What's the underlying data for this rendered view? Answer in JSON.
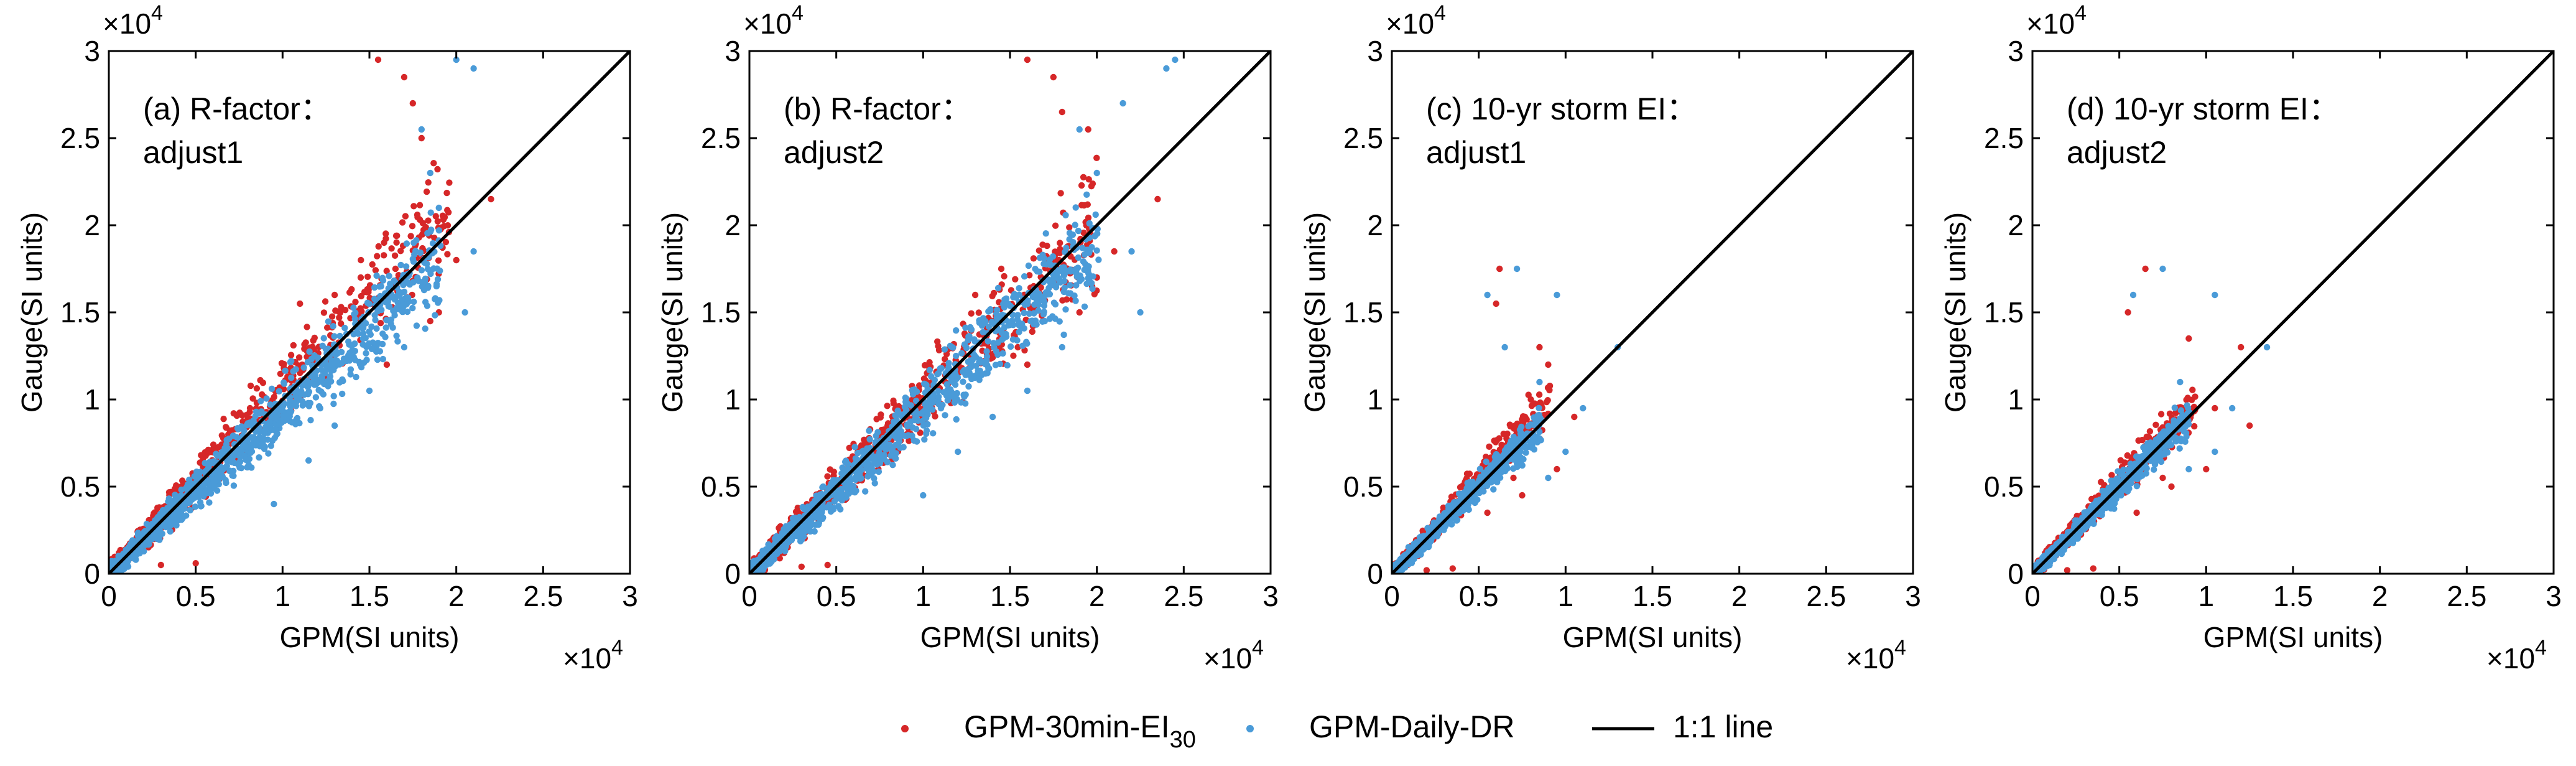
{
  "figure": {
    "legend": {
      "placement": "bottom-center",
      "items": [
        {
          "label_main": "GPM-30min-EI",
          "label_sub": "30",
          "marker": "dot",
          "color": "#d62728"
        },
        {
          "label_main": "GPM-Daily-DR",
          "label_sub": "",
          "marker": "dot",
          "color": "#4a9bd8"
        },
        {
          "label_main": "1:1 line",
          "label_sub": "",
          "marker": "line",
          "color": "#000000"
        }
      ]
    },
    "colors": {
      "series_a": "#d62728",
      "series_b": "#4a9bd8",
      "line": "#000000"
    }
  },
  "chart_data": [
    {
      "type": "scatter",
      "panel": "a",
      "title_line1": "(a) R-factor：",
      "title_line2": "adjust1",
      "xlabel": "GPM(SI units)",
      "ylabel": "Gauge(SI units)",
      "xlim": [
        0,
        3
      ],
      "ylim": [
        0,
        3
      ],
      "ticks": [
        0,
        0.5,
        1,
        1.5,
        2,
        2.5,
        3
      ],
      "tick_labels": [
        "0",
        "0.5",
        "1",
        "1.5",
        "2",
        "2.5",
        "3"
      ],
      "y_multiplier_base": "×10",
      "y_multiplier_exp": "4",
      "x_multiplier_base": "×10",
      "x_multiplier_exp": "4",
      "ref_line": [
        [
          0,
          0
        ],
        [
          3,
          3
        ]
      ],
      "series": [
        {
          "name": "GPM-30min-EI30",
          "color": "#d62728",
          "cluster": {
            "n": 650,
            "xmax": 1.95,
            "spread": 0.16,
            "bias": 1.05,
            "seed": 11
          },
          "outliers": [
            [
              1.55,
              2.95
            ],
            [
              1.7,
              2.85
            ],
            [
              1.8,
              2.5
            ],
            [
              1.75,
              2.7
            ],
            [
              2.2,
              2.15
            ],
            [
              1.9,
              1.5
            ],
            [
              1.6,
              1.2
            ],
            [
              2.0,
              1.8
            ],
            [
              1.45,
              1.7
            ],
            [
              1.3,
              1.6
            ],
            [
              1.1,
              1.55
            ],
            [
              0.5,
              0.06
            ],
            [
              0.3,
              0.05
            ],
            [
              1.85,
              1.45
            ],
            [
              1.65,
              1.75
            ]
          ]
        },
        {
          "name": "GPM-Daily-DR",
          "color": "#4a9bd8",
          "cluster": {
            "n": 1100,
            "xmax": 1.9,
            "spread": 0.14,
            "bias": 0.95,
            "seed": 23
          },
          "outliers": [
            [
              2.0,
              2.95
            ],
            [
              2.1,
              2.9
            ],
            [
              1.8,
              2.55
            ],
            [
              1.85,
              2.3
            ],
            [
              1.9,
              2.1
            ],
            [
              2.1,
              1.85
            ],
            [
              2.05,
              1.5
            ],
            [
              1.7,
              1.3
            ],
            [
              1.5,
              1.05
            ],
            [
              1.3,
              0.85
            ],
            [
              1.15,
              0.65
            ],
            [
              0.95,
              0.4
            ]
          ]
        }
      ]
    },
    {
      "type": "scatter",
      "panel": "b",
      "title_line1": "(b) R-factor：",
      "title_line2": "adjust2",
      "xlabel": "GPM(SI units)",
      "ylabel": "Gauge(SI units)",
      "xlim": [
        0,
        3
      ],
      "ylim": [
        0,
        3
      ],
      "ticks": [
        0,
        0.5,
        1,
        1.5,
        2,
        2.5,
        3
      ],
      "tick_labels": [
        "0",
        "0.5",
        "1",
        "1.5",
        "2",
        "2.5",
        "3"
      ],
      "y_multiplier_base": "×10",
      "y_multiplier_exp": "4",
      "x_multiplier_base": "×10",
      "x_multiplier_exp": "4",
      "ref_line": [
        [
          0,
          0
        ],
        [
          3,
          3
        ]
      ],
      "series": [
        {
          "name": "GPM-30min-EI30",
          "color": "#d62728",
          "cluster": {
            "n": 650,
            "xmax": 2.0,
            "spread": 0.16,
            "bias": 1.0,
            "seed": 31
          },
          "outliers": [
            [
              1.6,
              2.95
            ],
            [
              1.75,
              2.85
            ],
            [
              1.95,
              2.55
            ],
            [
              1.8,
              2.65
            ],
            [
              2.35,
              2.15
            ],
            [
              2.1,
              1.85
            ],
            [
              1.9,
              1.5
            ],
            [
              1.6,
              1.2
            ],
            [
              1.45,
              1.75
            ],
            [
              1.3,
              1.6
            ],
            [
              0.45,
              0.05
            ],
            [
              0.3,
              0.04
            ],
            [
              2.0,
              1.7
            ]
          ]
        },
        {
          "name": "GPM-Daily-DR",
          "color": "#4a9bd8",
          "cluster": {
            "n": 1100,
            "xmax": 2.0,
            "spread": 0.14,
            "bias": 0.95,
            "seed": 43
          },
          "outliers": [
            [
              2.45,
              2.95
            ],
            [
              2.4,
              2.9
            ],
            [
              2.15,
              2.7
            ],
            [
              1.9,
              2.55
            ],
            [
              2.0,
              2.3
            ],
            [
              2.2,
              1.85
            ],
            [
              2.25,
              1.5
            ],
            [
              1.8,
              1.3
            ],
            [
              1.6,
              1.05
            ],
            [
              1.4,
              0.9
            ],
            [
              1.2,
              0.7
            ],
            [
              1.0,
              0.45
            ]
          ]
        }
      ]
    },
    {
      "type": "scatter",
      "panel": "c",
      "title_line1": "(c) 10-yr storm EI：",
      "title_line2": "adjust1",
      "xlabel": "GPM(SI units)",
      "ylabel": "Gauge(SI units)",
      "xlim": [
        0,
        3
      ],
      "ylim": [
        0,
        3
      ],
      "ticks": [
        0,
        0.5,
        1,
        1.5,
        2,
        2.5,
        3
      ],
      "tick_labels": [
        "0",
        "0.5",
        "1",
        "1.5",
        "2",
        "2.5",
        "3"
      ],
      "y_multiplier_base": "×10",
      "y_multiplier_exp": "4",
      "x_multiplier_base": "×10",
      "x_multiplier_exp": "4",
      "ref_line": [
        [
          0,
          0
        ],
        [
          3,
          3
        ]
      ],
      "series": [
        {
          "name": "GPM-30min-EI30",
          "color": "#d62728",
          "cluster": {
            "n": 420,
            "xmax": 0.9,
            "spread": 0.12,
            "bias": 1.1,
            "seed": 51
          },
          "outliers": [
            [
              0.62,
              1.75
            ],
            [
              0.85,
              1.3
            ],
            [
              0.9,
              1.2
            ],
            [
              1.05,
              0.9
            ],
            [
              0.95,
              0.6
            ],
            [
              0.75,
              0.45
            ],
            [
              0.55,
              0.35
            ],
            [
              0.7,
              0.55
            ],
            [
              0.8,
              1.0
            ],
            [
              0.6,
              1.55
            ],
            [
              0.35,
              0.03
            ],
            [
              0.2,
              0.02
            ]
          ]
        },
        {
          "name": "GPM-Daily-DR",
          "color": "#4a9bd8",
          "cluster": {
            "n": 800,
            "xmax": 0.85,
            "spread": 0.1,
            "bias": 1.0,
            "seed": 63
          },
          "outliers": [
            [
              0.72,
              1.75
            ],
            [
              0.55,
              1.6
            ],
            [
              0.65,
              1.3
            ],
            [
              0.95,
              1.6
            ],
            [
              1.3,
              1.3
            ],
            [
              1.1,
              0.95
            ],
            [
              1.0,
              0.7
            ],
            [
              0.9,
              0.55
            ],
            [
              0.85,
              1.1
            ]
          ]
        }
      ]
    },
    {
      "type": "scatter",
      "panel": "d",
      "title_line1": "(d) 10-yr storm EI：",
      "title_line2": "adjust2",
      "xlabel": "GPM(SI units)",
      "ylabel": "Gauge(SI units)",
      "xlim": [
        0,
        3
      ],
      "ylim": [
        0,
        3
      ],
      "ticks": [
        0,
        0.5,
        1,
        1.5,
        2,
        2.5,
        3
      ],
      "tick_labels": [
        "0",
        "0.5",
        "1",
        "1.5",
        "2",
        "2.5",
        "3"
      ],
      "y_multiplier_base": "×10",
      "y_multiplier_exp": "4",
      "x_multiplier_base": "×10",
      "x_multiplier_exp": "4",
      "ref_line": [
        [
          0,
          0
        ],
        [
          3,
          3
        ]
      ],
      "series": [
        {
          "name": "GPM-30min-EI30",
          "color": "#d62728",
          "cluster": {
            "n": 420,
            "xmax": 0.95,
            "spread": 0.12,
            "bias": 1.05,
            "seed": 71
          },
          "outliers": [
            [
              0.65,
              1.75
            ],
            [
              0.9,
              1.35
            ],
            [
              1.2,
              1.3
            ],
            [
              1.05,
              0.95
            ],
            [
              1.25,
              0.85
            ],
            [
              1.0,
              0.6
            ],
            [
              0.8,
              0.5
            ],
            [
              0.6,
              0.35
            ],
            [
              0.75,
              0.55
            ],
            [
              0.55,
              1.5
            ],
            [
              0.35,
              0.03
            ],
            [
              0.2,
              0.02
            ]
          ]
        },
        {
          "name": "GPM-Daily-DR",
          "color": "#4a9bd8",
          "cluster": {
            "n": 800,
            "xmax": 0.9,
            "spread": 0.1,
            "bias": 1.0,
            "seed": 83
          },
          "outliers": [
            [
              0.75,
              1.75
            ],
            [
              0.58,
              1.6
            ],
            [
              1.05,
              1.6
            ],
            [
              1.35,
              1.3
            ],
            [
              1.15,
              0.95
            ],
            [
              1.05,
              0.7
            ],
            [
              0.9,
              0.6
            ],
            [
              0.85,
              1.1
            ]
          ]
        }
      ]
    }
  ]
}
